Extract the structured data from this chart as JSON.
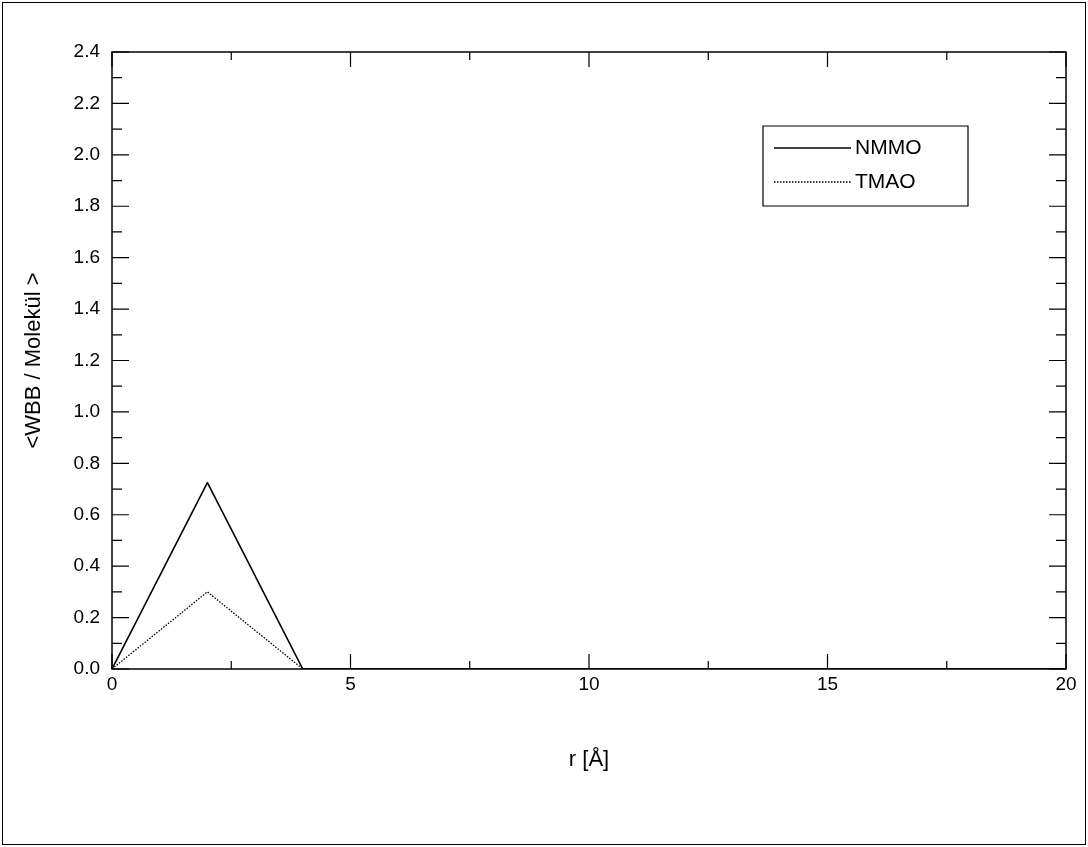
{
  "chart_data": {
    "type": "line",
    "xlabel": "r [Å]",
    "ylabel": "<WBB / Molekül >",
    "x": [
      0,
      2,
      4,
      6,
      8,
      10,
      12,
      14,
      16,
      18,
      20
    ],
    "series": [
      {
        "name": "NMMO",
        "color": "#000000",
        "line_style": "solid",
        "values": [
          0,
          0.725,
          0,
          0,
          0,
          0,
          0,
          0,
          0,
          0,
          0
        ]
      },
      {
        "name": "TMAO",
        "color": "#000000",
        "line_style": "dotted",
        "values": [
          0,
          0.3,
          0,
          0,
          0,
          0,
          0,
          0,
          0,
          0,
          0
        ]
      }
    ],
    "xlim": [
      0,
      20
    ],
    "xticks": [
      0,
      {
        "value": 2.5,
        "label": null
      },
      5,
      {
        "value": 7.5,
        "label": null
      },
      10,
      {
        "value": 12.5,
        "label": null
      },
      15,
      {
        "value": 17.5,
        "label": null
      },
      20
    ],
    "ylim": [
      0,
      2.4
    ],
    "yticks": [
      "0.0",
      {
        "value": 0.1,
        "label": null
      },
      {
        "value": 0.2,
        "label": "0.2"
      },
      {
        "value": 0.3,
        "label": null
      },
      {
        "value": 0.4,
        "label": "0.4"
      },
      {
        "value": 0.5,
        "label": null
      },
      {
        "value": 0.6,
        "label": "0.6"
      },
      {
        "value": 0.7,
        "label": null
      },
      {
        "value": 0.8,
        "label": "0.8"
      },
      {
        "value": 0.9,
        "label": null
      },
      {
        "value": 1,
        "label": "1.0"
      },
      {
        "value": 1.1,
        "label": null
      },
      {
        "value": 1.2,
        "label": "1.2"
      },
      {
        "value": 1.3,
        "label": null
      },
      {
        "value": 1.4,
        "label": "1.4"
      },
      {
        "value": 1.5,
        "label": null
      },
      {
        "value": 1.6,
        "label": "1.6"
      },
      {
        "value": 1.7,
        "label": null
      },
      {
        "value": 1.8,
        "label": "1.8"
      },
      {
        "value": 1.9,
        "label": null
      },
      {
        "value": 2,
        "label": "2.0"
      },
      {
        "value": 2.1,
        "label": null
      },
      {
        "value": 2.2,
        "label": "2.2"
      },
      {
        "value": 2.3,
        "label": null
      },
      {
        "value": 2.4,
        "label": "2.4"
      }
    ],
    "grid": false,
    "legend": "top right",
    "marker": "none"
  }
}
